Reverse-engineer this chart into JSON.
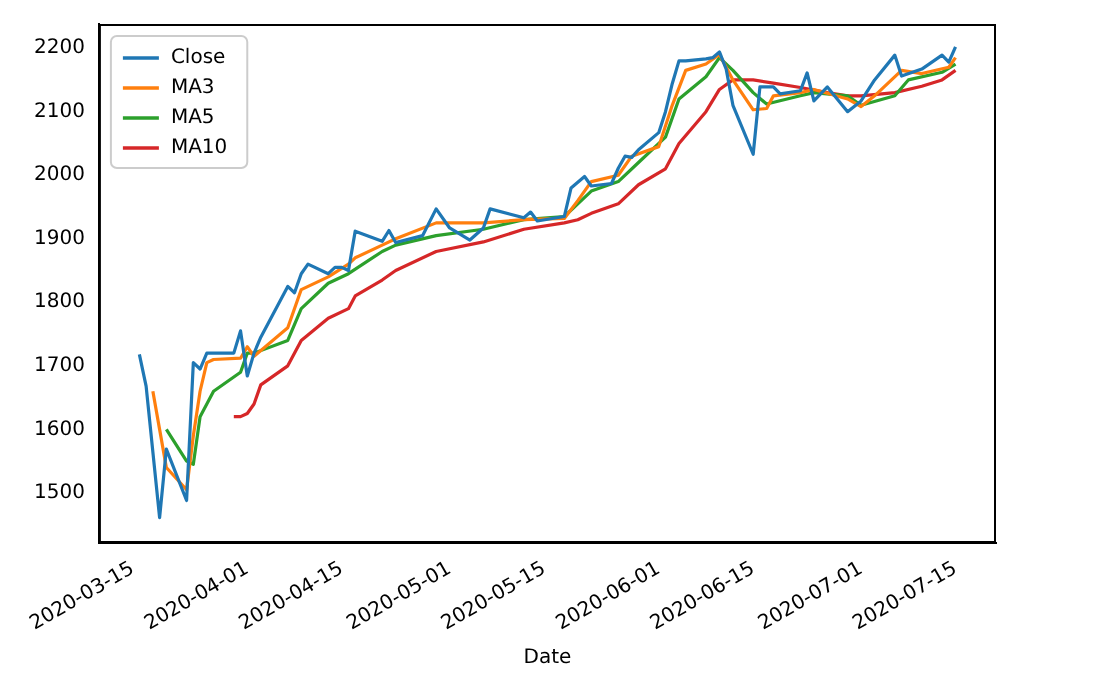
{
  "chart_data": {
    "type": "line",
    "xlabel": "Date",
    "legend": "top left",
    "grid": false,
    "marker": "none",
    "line_style": "solid",
    "xlim": [
      "2020-03-10",
      "2020-07-21"
    ],
    "xticks": [
      "2020-03-15",
      "2020-04-01",
      "2020-04-15",
      "2020-05-01",
      "2020-05-15",
      "2020-06-01",
      "2020-06-15",
      "2020-07-01",
      "2020-07-15"
    ],
    "ylim": [
      1421,
      2238
    ],
    "yticks": [
      1500,
      1600,
      1700,
      1800,
      1900,
      2000,
      2100,
      2200
    ],
    "series": [
      {
        "name": "Close",
        "color": "#1f77b4",
        "x": [
          "2020-03-16",
          "2020-03-17",
          "2020-03-19",
          "2020-03-20",
          "2020-03-23",
          "2020-03-24",
          "2020-03-25",
          "2020-03-26",
          "2020-03-27",
          "2020-03-30",
          "2020-03-31",
          "2020-04-01",
          "2020-04-02",
          "2020-04-03",
          "2020-04-07",
          "2020-04-08",
          "2020-04-09",
          "2020-04-10",
          "2020-04-13",
          "2020-04-14",
          "2020-04-15",
          "2020-04-16",
          "2020-04-17",
          "2020-04-21",
          "2020-04-22",
          "2020-04-23",
          "2020-04-27",
          "2020-04-29",
          "2020-05-01",
          "2020-05-04",
          "2020-05-06",
          "2020-05-07",
          "2020-05-12",
          "2020-05-13",
          "2020-05-14",
          "2020-05-18",
          "2020-05-19",
          "2020-05-21",
          "2020-05-22",
          "2020-05-25",
          "2020-05-26",
          "2020-05-27",
          "2020-05-28",
          "2020-05-29",
          "2020-06-01",
          "2020-06-02",
          "2020-06-03",
          "2020-06-04",
          "2020-06-05",
          "2020-06-08",
          "2020-06-09",
          "2020-06-10",
          "2020-06-11",
          "2020-06-12",
          "2020-06-15",
          "2020-06-16",
          "2020-06-17",
          "2020-06-18",
          "2020-06-19",
          "2020-06-22",
          "2020-06-23",
          "2020-06-24",
          "2020-06-26",
          "2020-06-29",
          "2020-07-01",
          "2020-07-03",
          "2020-07-06",
          "2020-07-07",
          "2020-07-10",
          "2020-07-13",
          "2020-07-14",
          "2020-07-15"
        ],
        "values": [
          1718,
          1668,
          1461,
          1569,
          1488,
          1705,
          1695,
          1720,
          1720,
          1720,
          1755,
          1684,
          1720,
          1745,
          1825,
          1815,
          1845,
          1860,
          1845,
          1855,
          1855,
          1850,
          1912,
          1896,
          1913,
          1894,
          1905,
          1947,
          1917,
          1898,
          1917,
          1947,
          1933,
          1942,
          1928,
          1935,
          1980,
          1998,
          1983,
          1987,
          2011,
          2030,
          2028,
          2040,
          2067,
          2100,
          2144,
          2180,
          2180,
          2183,
          2185,
          2194,
          2167,
          2110,
          2033,
          2139,
          2139,
          2139,
          2128,
          2133,
          2161,
          2117,
          2139,
          2100,
          2117,
          2150,
          2189,
          2156,
          2167,
          2189,
          2178,
          2202
        ]
      },
      {
        "name": "MA3",
        "color": "#ff7f0e",
        "x": [
          "2020-03-18",
          "2020-03-19",
          "2020-03-20",
          "2020-03-23",
          "2020-03-24",
          "2020-03-25",
          "2020-03-26",
          "2020-03-27",
          "2020-03-31",
          "2020-04-01",
          "2020-04-02",
          "2020-04-07",
          "2020-04-09",
          "2020-04-13",
          "2020-04-16",
          "2020-04-17",
          "2020-04-21",
          "2020-04-23",
          "2020-04-29",
          "2020-05-06",
          "2020-05-12",
          "2020-05-18",
          "2020-05-20",
          "2020-05-22",
          "2020-05-26",
          "2020-05-28",
          "2020-06-01",
          "2020-06-03",
          "2020-06-05",
          "2020-06-08",
          "2020-06-10",
          "2020-06-12",
          "2020-06-15",
          "2020-06-17",
          "2020-06-18",
          "2020-06-22",
          "2020-06-24",
          "2020-06-29",
          "2020-07-01",
          "2020-07-03",
          "2020-07-07",
          "2020-07-10",
          "2020-07-14",
          "2020-07-15"
        ],
        "values": [
          1660,
          1600,
          1540,
          1505,
          1590,
          1660,
          1705,
          1710,
          1712,
          1730,
          1715,
          1760,
          1820,
          1840,
          1860,
          1870,
          1890,
          1900,
          1925,
          1925,
          1930,
          1932,
          1960,
          1990,
          2000,
          2030,
          2045,
          2110,
          2165,
          2175,
          2190,
          2150,
          2103,
          2105,
          2125,
          2130,
          2135,
          2120,
          2108,
          2125,
          2165,
          2160,
          2170,
          2185
        ]
      },
      {
        "name": "MA5",
        "color": "#2ca02c",
        "x": [
          "2020-03-20",
          "2020-03-23",
          "2020-03-24",
          "2020-03-25",
          "2020-03-26",
          "2020-03-27",
          "2020-03-31",
          "2020-04-01",
          "2020-04-02",
          "2020-04-07",
          "2020-04-09",
          "2020-04-13",
          "2020-04-16",
          "2020-04-21",
          "2020-04-23",
          "2020-04-29",
          "2020-05-06",
          "2020-05-12",
          "2020-05-18",
          "2020-05-20",
          "2020-05-22",
          "2020-05-26",
          "2020-05-29",
          "2020-06-02",
          "2020-06-04",
          "2020-06-08",
          "2020-06-10",
          "2020-06-12",
          "2020-06-15",
          "2020-06-17",
          "2020-06-22",
          "2020-06-24",
          "2020-06-29",
          "2020-07-01",
          "2020-07-06",
          "2020-07-08",
          "2020-07-13",
          "2020-07-15"
        ],
        "values": [
          1600,
          1550,
          1545,
          1620,
          1640,
          1660,
          1690,
          1720,
          1720,
          1740,
          1790,
          1830,
          1845,
          1880,
          1890,
          1905,
          1915,
          1930,
          1935,
          1955,
          1975,
          1990,
          2020,
          2060,
          2120,
          2155,
          2185,
          2165,
          2130,
          2112,
          2125,
          2130,
          2125,
          2110,
          2125,
          2150,
          2162,
          2175
        ]
      },
      {
        "name": "MA10",
        "color": "#d62728",
        "x": [
          "2020-03-30",
          "2020-03-31",
          "2020-04-01",
          "2020-04-02",
          "2020-04-03",
          "2020-04-07",
          "2020-04-09",
          "2020-04-13",
          "2020-04-16",
          "2020-04-17",
          "2020-04-21",
          "2020-04-23",
          "2020-04-29",
          "2020-05-06",
          "2020-05-12",
          "2020-05-18",
          "2020-05-20",
          "2020-05-22",
          "2020-05-26",
          "2020-05-29",
          "2020-06-02",
          "2020-06-04",
          "2020-06-08",
          "2020-06-10",
          "2020-06-12",
          "2020-06-15",
          "2020-06-18",
          "2020-06-22",
          "2020-06-26",
          "2020-06-29",
          "2020-07-01",
          "2020-07-06",
          "2020-07-10",
          "2020-07-13",
          "2020-07-15"
        ],
        "values": [
          1620,
          1620,
          1625,
          1640,
          1670,
          1700,
          1740,
          1775,
          1790,
          1810,
          1835,
          1850,
          1880,
          1895,
          1915,
          1925,
          1930,
          1940,
          1955,
          1985,
          2010,
          2050,
          2100,
          2135,
          2150,
          2150,
          2145,
          2138,
          2130,
          2125,
          2125,
          2130,
          2140,
          2150,
          2165
        ]
      }
    ]
  }
}
